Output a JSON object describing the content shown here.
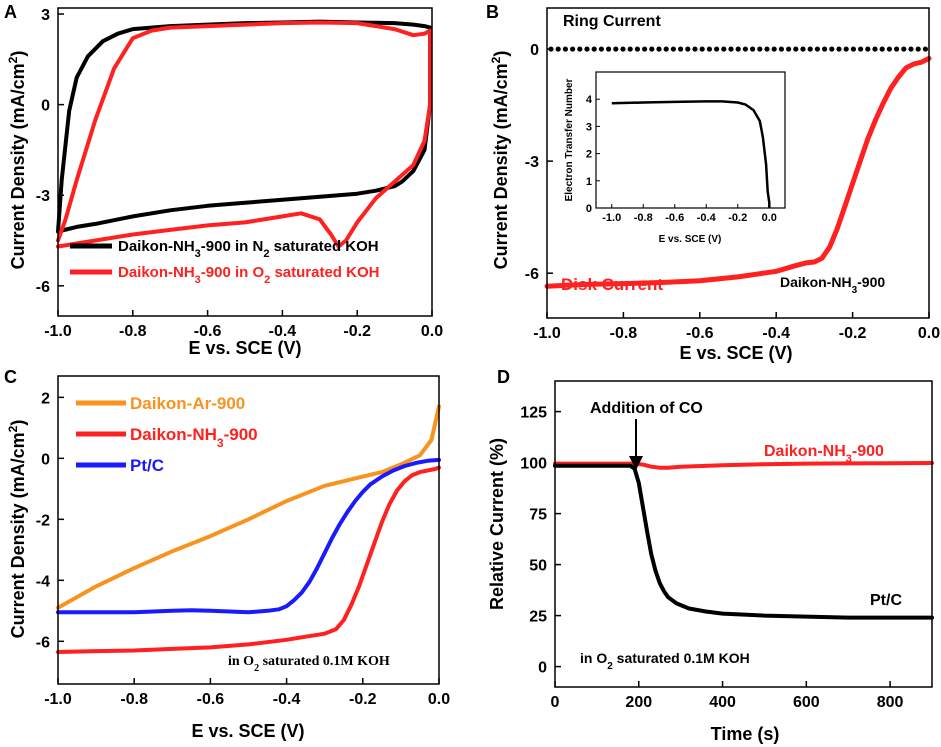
{
  "panels": {
    "A": {
      "letter": "A",
      "xlabel": "E vs. SCE (V)",
      "ylabel_main": "Current Density (mA/cm",
      "ylabel_sup": "2",
      "ylabel_end": ")",
      "legend": [
        {
          "pre": "Daikon-NH",
          "sub": "3",
          "mid": "-900 in N",
          "sub2": "2",
          "post": " saturated KOH"
        },
        {
          "pre": "Daikon-NH",
          "sub": "3",
          "mid": "-900 in O",
          "sub2": "2",
          "post": " saturated KOH"
        }
      ]
    },
    "B": {
      "letter": "B",
      "xlabel": "E vs. SCE (V)",
      "ylabel_main": "Current Density (mA/cm",
      "ylabel_sup": "2",
      "ylabel_end": ")",
      "ring_label": "Ring Current",
      "disk_label": "Disk Current",
      "sample_pre": "Daikon-NH",
      "sample_sub": "3",
      "sample_post": "-900",
      "inset_ylabel": "Electron Transfer Number",
      "inset_xlabel": "E vs. SCE (V)"
    },
    "C": {
      "letter": "C",
      "xlabel": "E vs. SCE (V)",
      "ylabel_main": "Current Density (mA/cm",
      "ylabel_sup": "2",
      "ylabel_end": ")",
      "legend": [
        {
          "pre": "Daikon-Ar-900",
          "sub": "",
          "post": ""
        },
        {
          "pre": "Daikon-NH",
          "sub": "3",
          "post": "-900"
        },
        {
          "pre": "Pt/C",
          "sub": "",
          "post": ""
        }
      ],
      "cond_pre": "in O",
      "cond_sub": "2",
      "cond_post": " saturated 0.1M KOH"
    },
    "D": {
      "letter": "D",
      "xlabel": "Time (s)",
      "ylabel": "Relative Current (%)",
      "co_label": "Addition of CO",
      "daikon_pre": "Daikon-NH",
      "daikon_sub": "3",
      "daikon_post": "-900",
      "ptc_label": "Pt/C",
      "cond_pre": "in O",
      "cond_sub": "2",
      "cond_post": " saturated 0.1M KOH"
    }
  },
  "colors": {
    "black": "#000000",
    "red": "#ff2020",
    "orange": "#f7931e",
    "blue": "#1a1aff"
  },
  "chart_data": [
    {
      "panel": "A",
      "type": "line",
      "title": "",
      "xlabel": "E vs. SCE (V)",
      "ylabel": "Current Density (mA/cm2)",
      "xlim": [
        -1.0,
        0.0
      ],
      "ylim": [
        -7.0,
        3.2
      ],
      "xticks": [
        "-1.0",
        "-0.8",
        "-0.6",
        "-0.4",
        "-0.2",
        "0.0"
      ],
      "yticks": [
        "3",
        "0",
        "-3",
        "-6"
      ],
      "series": [
        {
          "name": "Daikon-NH3-900 in N2 saturated KOH",
          "color": "black",
          "x": [
            -1.0,
            -0.99,
            -0.97,
            -0.95,
            -0.92,
            -0.88,
            -0.84,
            -0.8,
            -0.75,
            -0.7,
            -0.6,
            -0.5,
            -0.4,
            -0.3,
            -0.2,
            -0.1,
            -0.05,
            -0.02,
            -0.005,
            -0.005,
            -0.02,
            -0.05,
            -0.08,
            -0.1,
            -0.15,
            -0.2,
            -0.3,
            -0.4,
            -0.5,
            -0.6,
            -0.7,
            -0.8,
            -0.9,
            -0.95,
            -1.0
          ],
          "y": [
            -4.2,
            -2.5,
            -0.2,
            0.9,
            1.6,
            2.1,
            2.35,
            2.5,
            2.55,
            2.6,
            2.65,
            2.7,
            2.72,
            2.75,
            2.72,
            2.7,
            2.65,
            2.6,
            2.55,
            0.0,
            -1.5,
            -2.2,
            -2.55,
            -2.7,
            -2.85,
            -2.95,
            -3.05,
            -3.15,
            -3.25,
            -3.35,
            -3.5,
            -3.7,
            -3.95,
            -4.05,
            -4.2
          ]
        },
        {
          "name": "Daikon-NH3-900 in O2 saturated KOH",
          "color": "red",
          "x": [
            -1.0,
            -0.98,
            -0.95,
            -0.9,
            -0.85,
            -0.8,
            -0.75,
            -0.7,
            -0.6,
            -0.5,
            -0.4,
            -0.3,
            -0.2,
            -0.1,
            -0.05,
            -0.02,
            -0.005,
            -0.005,
            -0.02,
            -0.05,
            -0.1,
            -0.15,
            -0.2,
            -0.23,
            -0.25,
            -0.27,
            -0.3,
            -0.35,
            -0.4,
            -0.5,
            -0.6,
            -0.7,
            -0.8,
            -0.9,
            -0.95,
            -1.0
          ],
          "y": [
            -4.5,
            -3.8,
            -2.5,
            -0.5,
            1.2,
            2.2,
            2.45,
            2.55,
            2.6,
            2.65,
            2.7,
            2.72,
            2.7,
            2.5,
            2.3,
            2.35,
            2.45,
            0.0,
            -1.2,
            -2.0,
            -2.55,
            -3.1,
            -3.9,
            -4.5,
            -4.7,
            -4.3,
            -3.8,
            -3.6,
            -3.7,
            -3.9,
            -4.0,
            -4.15,
            -4.3,
            -4.5,
            -4.6,
            -4.7
          ]
        }
      ]
    },
    {
      "panel": "B",
      "type": "line",
      "title": "",
      "xlabel": "E vs. SCE (V)",
      "ylabel": "Current Density (mA/cm2)",
      "xlim": [
        -1.0,
        0.0
      ],
      "ylim": [
        -7.2,
        1.1
      ],
      "xticks": [
        "-1.0",
        "-0.8",
        "-0.6",
        "-0.4",
        "-0.2",
        "0.0"
      ],
      "yticks": [
        "0",
        "-3",
        "-6"
      ],
      "series": [
        {
          "name": "Ring Current",
          "color": "black",
          "style": "dotted",
          "x": [
            -1.0,
            0.0
          ],
          "y": [
            0.0,
            0.0
          ]
        },
        {
          "name": "Disk Current",
          "color": "red",
          "x": [
            -1.0,
            -0.9,
            -0.8,
            -0.7,
            -0.6,
            -0.5,
            -0.4,
            -0.35,
            -0.32,
            -0.3,
            -0.28,
            -0.26,
            -0.24,
            -0.22,
            -0.2,
            -0.18,
            -0.16,
            -0.14,
            -0.12,
            -0.1,
            -0.08,
            -0.06,
            -0.04,
            -0.02,
            0.0
          ],
          "y": [
            -6.35,
            -6.3,
            -6.28,
            -6.25,
            -6.2,
            -6.1,
            -5.95,
            -5.8,
            -5.72,
            -5.7,
            -5.6,
            -5.3,
            -4.8,
            -4.2,
            -3.6,
            -3.0,
            -2.4,
            -1.9,
            -1.45,
            -1.05,
            -0.75,
            -0.5,
            -0.4,
            -0.35,
            -0.25
          ]
        }
      ],
      "inset": {
        "type": "line",
        "xlabel": "E vs. SCE (V)",
        "ylabel": "Electron Transfer Number",
        "xlim": [
          -1.1,
          0.1
        ],
        "ylim": [
          0,
          5
        ],
        "xticks": [
          "-1.0",
          "-0.8",
          "-0.6",
          "-0.4",
          "-0.2",
          "0.0"
        ],
        "yticks": [
          "0",
          "1",
          "2",
          "3",
          "4"
        ],
        "x": [
          -1.0,
          -0.8,
          -0.6,
          -0.4,
          -0.3,
          -0.2,
          -0.15,
          -0.1,
          -0.06,
          -0.04,
          -0.02,
          -0.01,
          0.0,
          0.0
        ],
        "y": [
          3.85,
          3.88,
          3.9,
          3.92,
          3.92,
          3.88,
          3.8,
          3.6,
          3.2,
          2.6,
          1.6,
          0.6,
          0.2,
          0.0
        ]
      }
    },
    {
      "panel": "C",
      "type": "line",
      "title": "",
      "xlabel": "E vs. SCE (V)",
      "ylabel": "Current Density (mA/cm2)",
      "xlim": [
        -1.0,
        0.0
      ],
      "ylim": [
        -7.4,
        2.7
      ],
      "xticks": [
        "-1.0",
        "-0.8",
        "-0.6",
        "-0.4",
        "-0.2",
        "0.0"
      ],
      "yticks": [
        "2",
        "0",
        "-2",
        "-4",
        "-6"
      ],
      "series": [
        {
          "name": "Daikon-Ar-900",
          "color": "orange",
          "x": [
            -1.0,
            -0.9,
            -0.8,
            -0.7,
            -0.6,
            -0.5,
            -0.4,
            -0.3,
            -0.25,
            -0.2,
            -0.15,
            -0.1,
            -0.05,
            -0.02,
            0.0
          ],
          "y": [
            -4.9,
            -4.2,
            -3.6,
            -3.05,
            -2.55,
            -2.0,
            -1.4,
            -0.9,
            -0.75,
            -0.6,
            -0.45,
            -0.2,
            0.1,
            0.6,
            1.7
          ]
        },
        {
          "name": "Daikon-NH3-900",
          "color": "red",
          "x": [
            -1.0,
            -0.9,
            -0.8,
            -0.7,
            -0.6,
            -0.5,
            -0.4,
            -0.35,
            -0.3,
            -0.27,
            -0.25,
            -0.23,
            -0.21,
            -0.19,
            -0.17,
            -0.15,
            -0.13,
            -0.11,
            -0.09,
            -0.07,
            -0.05,
            -0.03,
            -0.01,
            0.0
          ],
          "y": [
            -6.35,
            -6.32,
            -6.3,
            -6.25,
            -6.2,
            -6.1,
            -5.95,
            -5.85,
            -5.75,
            -5.6,
            -5.3,
            -4.8,
            -4.2,
            -3.5,
            -2.8,
            -2.1,
            -1.5,
            -1.05,
            -0.75,
            -0.55,
            -0.45,
            -0.4,
            -0.35,
            -0.3
          ]
        },
        {
          "name": "Pt/C",
          "color": "blue",
          "x": [
            -1.0,
            -0.9,
            -0.8,
            -0.7,
            -0.65,
            -0.6,
            -0.5,
            -0.45,
            -0.42,
            -0.4,
            -0.38,
            -0.36,
            -0.34,
            -0.32,
            -0.3,
            -0.28,
            -0.26,
            -0.24,
            -0.22,
            -0.2,
            -0.18,
            -0.15,
            -0.12,
            -0.09,
            -0.06,
            -0.03,
            0.0
          ],
          "y": [
            -5.05,
            -5.05,
            -5.05,
            -5.0,
            -4.98,
            -5.0,
            -5.05,
            -5.0,
            -4.95,
            -4.85,
            -4.65,
            -4.4,
            -4.05,
            -3.6,
            -3.1,
            -2.6,
            -2.15,
            -1.75,
            -1.4,
            -1.1,
            -0.85,
            -0.6,
            -0.4,
            -0.25,
            -0.15,
            -0.08,
            -0.05
          ]
        }
      ]
    },
    {
      "panel": "D",
      "type": "line",
      "title": "",
      "xlabel": "Time (s)",
      "ylabel": "Relative Current (%)",
      "xlim": [
        0,
        900
      ],
      "ylim": [
        -10,
        140
      ],
      "xticks": [
        "0",
        "200",
        "400",
        "600",
        "800"
      ],
      "yticks": [
        "0",
        "25",
        "50",
        "75",
        "100",
        "125"
      ],
      "series": [
        {
          "name": "Daikon-NH3-900",
          "color": "red",
          "x": [
            0,
            100,
            190,
            210,
            230,
            250,
            270,
            300,
            400,
            500,
            600,
            700,
            800,
            900
          ],
          "y": [
            99.5,
            99.5,
            99.5,
            99,
            98,
            97.5,
            97.5,
            98,
            98.7,
            99.2,
            99.5,
            99.6,
            99.7,
            99.8
          ]
        },
        {
          "name": "Pt/C",
          "color": "black",
          "x": [
            0,
            100,
            180,
            190,
            200,
            210,
            220,
            230,
            240,
            250,
            260,
            270,
            290,
            320,
            360,
            400,
            500,
            600,
            700,
            800,
            900
          ],
          "y": [
            98.5,
            98.5,
            98.5,
            97,
            90,
            78,
            66,
            55,
            47,
            41,
            37,
            34,
            31,
            28.5,
            27,
            26,
            25,
            24.5,
            24,
            24,
            24
          ]
        }
      ],
      "annotations": [
        "Addition of CO"
      ]
    }
  ]
}
